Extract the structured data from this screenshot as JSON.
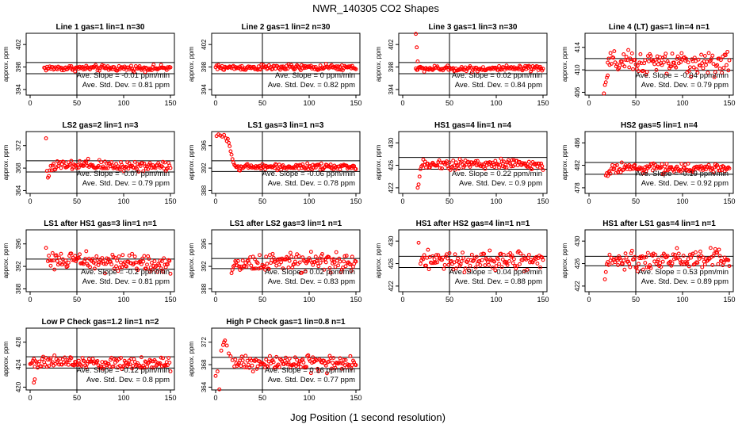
{
  "figure": {
    "title": "NWR_140305  CO2 Shapes",
    "xlabel": "Jog Position (1 second resolution)"
  },
  "colors": {
    "points": "#ff0000",
    "axes": "#000000"
  },
  "chart_data": [
    {
      "type": "scatter",
      "title": "Line 1 gas=1 lin=1 n=30",
      "ylabel": "approx. ppm",
      "xlim": [
        0,
        150
      ],
      "ylim": [
        393,
        404
      ],
      "xticks": [
        0,
        50,
        100,
        150
      ],
      "yticks": [
        394,
        398,
        402
      ],
      "hlines": [
        398.8,
        396.8
      ],
      "vline": 50,
      "stats": [
        "Ave. Slope = -0.01  ppm/min",
        "Ave. Std. Dev. = 0.81  ppm"
      ],
      "series": {
        "x_start": 15,
        "x_end": 150,
        "level": 397.8,
        "spread": 0.25,
        "trend": 0,
        "head": null
      }
    },
    {
      "type": "scatter",
      "title": "Line 2 gas=1 lin=2 n=30",
      "ylabel": "approx. ppm",
      "xlim": [
        0,
        150
      ],
      "ylim": [
        393,
        404
      ],
      "xticks": [
        0,
        50,
        100,
        150
      ],
      "yticks": [
        394,
        398,
        402
      ],
      "hlines": [
        398.8,
        396.8
      ],
      "vline": 50,
      "stats": [
        "Ave. Slope = 0  ppm/min",
        "Ave. Std. Dev. = 0.82  ppm"
      ],
      "series": {
        "x_start": 0,
        "x_end": 150,
        "level": 397.9,
        "spread": 0.25,
        "trend": 0,
        "head": null
      }
    },
    {
      "type": "scatter",
      "title": "Line 3 gas=1 lin=3 n=30",
      "ylabel": "approx. ppm",
      "xlim": [
        0,
        150
      ],
      "ylim": [
        393,
        404
      ],
      "xticks": [
        0,
        50,
        100,
        150
      ],
      "yticks": [
        394,
        398,
        402
      ],
      "hlines": [
        398.8,
        396.8
      ],
      "vline": 50,
      "stats": [
        "Ave. Slope = 0.02  ppm/min",
        "Ave. Std. Dev. = 0.84  ppm"
      ],
      "series": {
        "x_start": 14,
        "x_end": 150,
        "level": 397.7,
        "spread": 0.25,
        "trend": 0,
        "head": [
          [
            14,
            403.9
          ],
          [
            15,
            401.5
          ],
          [
            16,
            399.0
          ]
        ]
      }
    },
    {
      "type": "scatter",
      "title": "Line 4 (LT) gas=1 lin=4 n=1",
      "ylabel": "approx. ppm",
      "xlim": [
        0,
        150
      ],
      "ylim": [
        405.5,
        416.5
      ],
      "xticks": [
        0,
        50,
        100,
        150
      ],
      "yticks": [
        406,
        410,
        414
      ],
      "hlines": [
        412.0,
        409.9
      ],
      "vline": 50,
      "stats": [
        "Ave. Slope = -0.04  ppm/min",
        "Ave. Std. Dev. = 0.79  ppm"
      ],
      "series": {
        "x_start": 20,
        "x_end": 150,
        "level": 411.2,
        "spread": 1.0,
        "trend": 0,
        "head": [
          [
            16,
            405.8
          ],
          [
            17,
            407.3
          ],
          [
            18,
            407.8
          ],
          [
            19,
            408.6
          ],
          [
            20,
            409.0
          ]
        ]
      }
    },
    {
      "type": "scatter",
      "title": "LS2 gas=2 lin=1 n=3",
      "ylabel": "approx. ppm",
      "xlim": [
        0,
        150
      ],
      "ylim": [
        363.5,
        374.5
      ],
      "xticks": [
        0,
        50,
        100,
        150
      ],
      "yticks": [
        364,
        368,
        372
      ],
      "hlines": [
        369.3,
        367.3
      ],
      "vline": 50,
      "stats": [
        "Ave. Slope = -0.07  ppm/min",
        "Ave. Std. Dev. = 0.79  ppm"
      ],
      "series": {
        "x_start": 22,
        "x_end": 150,
        "level": 368.4,
        "spread": 0.5,
        "trend": 0,
        "head": [
          [
            17,
            373.3
          ],
          [
            18,
            367.5
          ],
          [
            19,
            366.3
          ],
          [
            20,
            366.6
          ],
          [
            21,
            367.6
          ]
        ]
      }
    },
    {
      "type": "scatter",
      "title": "LS1 gas=3 lin=1 n=3",
      "ylabel": "approx. ppm",
      "xlim": [
        0,
        150
      ],
      "ylim": [
        387.5,
        398.5
      ],
      "xticks": [
        0,
        50,
        100,
        150
      ],
      "yticks": [
        388,
        392,
        396
      ],
      "hlines": [
        393.3,
        391.4
      ],
      "vline": 50,
      "stats": [
        "Ave. Slope = -0.06  ppm/min",
        "Ave. Std. Dev. = 0.78  ppm"
      ],
      "series": {
        "x_start": 22,
        "x_end": 150,
        "level": 392.2,
        "spread": 0.25,
        "trend": 0,
        "head": [
          [
            1,
            397.7
          ],
          [
            3,
            398.0
          ],
          [
            5,
            397.8
          ],
          [
            7,
            397.6
          ],
          [
            9,
            397.9
          ],
          [
            11,
            397.3
          ],
          [
            12,
            396.8
          ],
          [
            13,
            397.2
          ],
          [
            14,
            396.5
          ],
          [
            15,
            395.9
          ],
          [
            16,
            395.0
          ],
          [
            17,
            394.4
          ],
          [
            18,
            393.6
          ],
          [
            19,
            393.0
          ],
          [
            20,
            392.6
          ],
          [
            21,
            392.4
          ]
        ]
      }
    },
    {
      "type": "scatter",
      "title": "HS1 gas=4 lin=1 n=4",
      "ylabel": "approx. ppm",
      "xlim": [
        0,
        150
      ],
      "ylim": [
        421,
        432
      ],
      "xticks": [
        0,
        50,
        100,
        150
      ],
      "yticks": [
        422,
        426,
        430
      ],
      "hlines": [
        427.4,
        425.3
      ],
      "vline": 50,
      "stats": [
        "Ave. Slope = 0.22  ppm/min",
        "Ave. Std. Dev. = 0.9  ppm"
      ],
      "series": {
        "x_start": 22,
        "x_end": 150,
        "level": 426.2,
        "spread": 0.45,
        "trend": 0,
        "head": [
          [
            16,
            422.0
          ],
          [
            17,
            422.6
          ],
          [
            18,
            424.0
          ],
          [
            19,
            425.3
          ],
          [
            20,
            425.8
          ],
          [
            21,
            426.0
          ]
        ]
      }
    },
    {
      "type": "scatter",
      "title": "HS2 gas=5 lin=1 n=4",
      "ylabel": "approx. ppm",
      "xlim": [
        0,
        150
      ],
      "ylim": [
        477,
        488
      ],
      "xticks": [
        0,
        50,
        100,
        150
      ],
      "yticks": [
        478,
        482,
        486
      ],
      "hlines": [
        482.5,
        480.4
      ],
      "vline": 50,
      "stats": [
        "Ave. Slope = -0.19  ppm/min",
        "Ave. Std. Dev. = 0.92  ppm"
      ],
      "series": {
        "x_start": 24,
        "x_end": 150,
        "level": 481.5,
        "spread": 0.4,
        "trend": 0,
        "head": [
          [
            18,
            480.2
          ],
          [
            19,
            480.6
          ],
          [
            20,
            480.1
          ],
          [
            21,
            480.8
          ],
          [
            22,
            481.0
          ],
          [
            23,
            480.5
          ]
        ]
      }
    },
    {
      "type": "scatter",
      "title": "LS1 after HS1 gas=3 lin=1 n=1",
      "ylabel": "approx. ppm",
      "xlim": [
        0,
        150
      ],
      "ylim": [
        387.5,
        398.5
      ],
      "xticks": [
        0,
        50,
        100,
        150
      ],
      "yticks": [
        388,
        392,
        396
      ],
      "hlines": [
        393.3,
        391.5
      ],
      "vline": 50,
      "stats": [
        "Ave. Slope = -0.2  ppm/min",
        "Ave. Std. Dev. = 0.81  ppm"
      ],
      "series": {
        "x_start": 19,
        "x_end": 150,
        "level": 393.2,
        "spread": 0.75,
        "trend": -1.0,
        "head": [
          [
            17,
            395.3
          ]
        ]
      }
    },
    {
      "type": "scatter",
      "title": "LS1 after LS2 gas=3 lin=1 n=1",
      "ylabel": "approx. ppm",
      "xlim": [
        0,
        150
      ],
      "ylim": [
        387.5,
        398.5
      ],
      "xticks": [
        0,
        50,
        100,
        150
      ],
      "yticks": [
        388,
        392,
        396
      ],
      "hlines": [
        393.4,
        391.6
      ],
      "vline": 50,
      "stats": [
        "Ave. Slope = 0.02  ppm/min",
        "Ave. Std. Dev. = 0.83  ppm"
      ],
      "series": {
        "x_start": 20,
        "x_end": 150,
        "level": 392.5,
        "spread": 0.75,
        "trend": 0.4,
        "head": [
          [
            17,
            390.8
          ],
          [
            18,
            391.4
          ],
          [
            19,
            392.0
          ]
        ]
      }
    },
    {
      "type": "scatter",
      "title": "HS1 after HS2 gas=4 lin=1 n=1",
      "ylabel": "approx. ppm",
      "xlim": [
        0,
        150
      ],
      "ylim": [
        421,
        432
      ],
      "xticks": [
        0,
        50,
        100,
        150
      ],
      "yticks": [
        422,
        426,
        430
      ],
      "hlines": [
        427.3,
        425.3
      ],
      "vline": 50,
      "stats": [
        "Ave. Slope = -0.04  ppm/min",
        "Ave. Std. Dev. = 0.88  ppm"
      ],
      "series": {
        "x_start": 19,
        "x_end": 150,
        "level": 426.4,
        "spread": 0.8,
        "trend": 0,
        "head": [
          [
            17,
            429.7
          ]
        ]
      }
    },
    {
      "type": "scatter",
      "title": "HS1 after LS1 gas=4 lin=1 n=1",
      "ylabel": "approx. ppm",
      "xlim": [
        0,
        150
      ],
      "ylim": [
        421,
        432
      ],
      "xticks": [
        0,
        50,
        100,
        150
      ],
      "yticks": [
        422,
        426,
        430
      ],
      "hlines": [
        427.3,
        425.6
      ],
      "vline": 50,
      "stats": [
        "Ave. Slope = 0.53  ppm/min",
        "Ave. Std. Dev. = 0.89  ppm"
      ],
      "series": {
        "x_start": 19,
        "x_end": 150,
        "level": 426.4,
        "spread": 0.8,
        "trend": 0.4,
        "head": [
          [
            17,
            423.2
          ],
          [
            18,
            424.5
          ]
        ]
      }
    },
    {
      "type": "scatter",
      "title": "Low P Check gas=1.2 lin=1 n=2",
      "ylabel": "approx. ppm",
      "xlim": [
        0,
        150
      ],
      "ylim": [
        419.5,
        430.5
      ],
      "xticks": [
        0,
        50,
        100,
        150
      ],
      "yticks": [
        420,
        424,
        428
      ],
      "hlines": [
        425.4,
        423.4
      ],
      "vline": 50,
      "stats": [
        "Ave. Slope = -0.12  ppm/min",
        "Ave. Std. Dev. = 0.8  ppm"
      ],
      "series": {
        "x_start": 0,
        "x_end": 150,
        "level": 424.5,
        "spread": 0.55,
        "trend": -0.3,
        "head": [
          [
            4,
            420.8
          ],
          [
            5,
            421.4
          ]
        ]
      }
    },
    {
      "type": "scatter",
      "title": "High P Check gas=1 lin=0.8 n=1",
      "ylabel": "approx. ppm",
      "xlim": [
        0,
        150
      ],
      "ylim": [
        363.5,
        374.5
      ],
      "xticks": [
        0,
        50,
        100,
        150
      ],
      "yticks": [
        364,
        368,
        372
      ],
      "hlines": [
        369.3,
        367.3
      ],
      "vline": 50,
      "stats": [
        "Ave. Slope = 0.16  ppm/min",
        "Ave. Std. Dev. = 0.77  ppm"
      ],
      "series": {
        "x_start": 20,
        "x_end": 150,
        "level": 368.2,
        "spread": 0.65,
        "trend": 0,
        "head": [
          [
            0,
            366.0
          ],
          [
            2,
            366.8
          ],
          [
            4,
            363.6
          ],
          [
            6,
            370.5
          ],
          [
            8,
            371.5
          ],
          [
            9,
            372.0
          ],
          [
            10,
            372.3
          ],
          [
            12,
            371.4
          ],
          [
            14,
            370.0
          ],
          [
            16,
            369.5
          ],
          [
            18,
            368.8
          ]
        ]
      }
    }
  ]
}
